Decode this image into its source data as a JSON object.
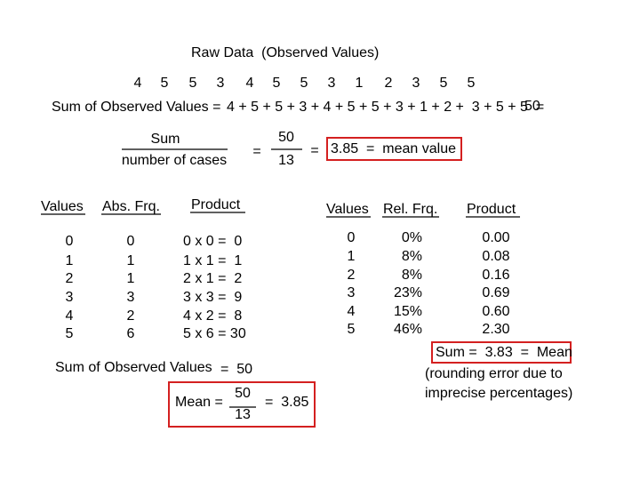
{
  "title": "Raw Data  (Observed Values)",
  "raw_values": [
    "4",
    "5",
    "5",
    "3",
    "4",
    "5",
    "5",
    "3",
    "1",
    "2",
    "3",
    "5",
    "5"
  ],
  "sum_line": {
    "label": "Sum of Observed Values =",
    "expression": "4 + 5 + 5 + 3 + 4 + 5 + 5 + 3 + 1 + 2 +  3 + 5 + 5  =",
    "result": "50"
  },
  "formula": {
    "numerator": "Sum",
    "denominator": "number of cases",
    "equals1": "=",
    "numerator2": "50",
    "denominator2": "13",
    "equals2": "=",
    "result": "3.85  =  mean value"
  },
  "left_table": {
    "headers": [
      "Values",
      "Abs. Frq.",
      "Product"
    ],
    "rows": [
      [
        "0",
        "0",
        "0 x 0 =  0"
      ],
      [
        "1",
        "1",
        "1 x 1 =  1"
      ],
      [
        "2",
        "1",
        "2 x 1 =  2"
      ],
      [
        "3",
        "3",
        "3 x 3 =  9"
      ],
      [
        "4",
        "2",
        "4 x 2 =  8"
      ],
      [
        "5",
        "6",
        "5 x 6 = 30"
      ]
    ]
  },
  "left_sum": {
    "label": "Sum of Observed Values",
    "value": "=  50"
  },
  "left_mean": {
    "label": "Mean =",
    "numerator": "50",
    "denominator": "13",
    "result": "=  3.85"
  },
  "right_table": {
    "headers": [
      "Values",
      "Rel. Frq.",
      "Product"
    ],
    "rows": [
      [
        "0",
        "0%",
        "0.00"
      ],
      [
        "1",
        "8%",
        "0.08"
      ],
      [
        "2",
        "8%",
        "0.16"
      ],
      [
        "3",
        "23%",
        "0.69"
      ],
      [
        "4",
        "15%",
        "0.60"
      ],
      [
        "5",
        "46%",
        "2.30"
      ]
    ]
  },
  "right_sum": "Sum =  3.83  =  Mean",
  "note": [
    "(rounding error due to",
    "imprecise percentages)"
  ]
}
